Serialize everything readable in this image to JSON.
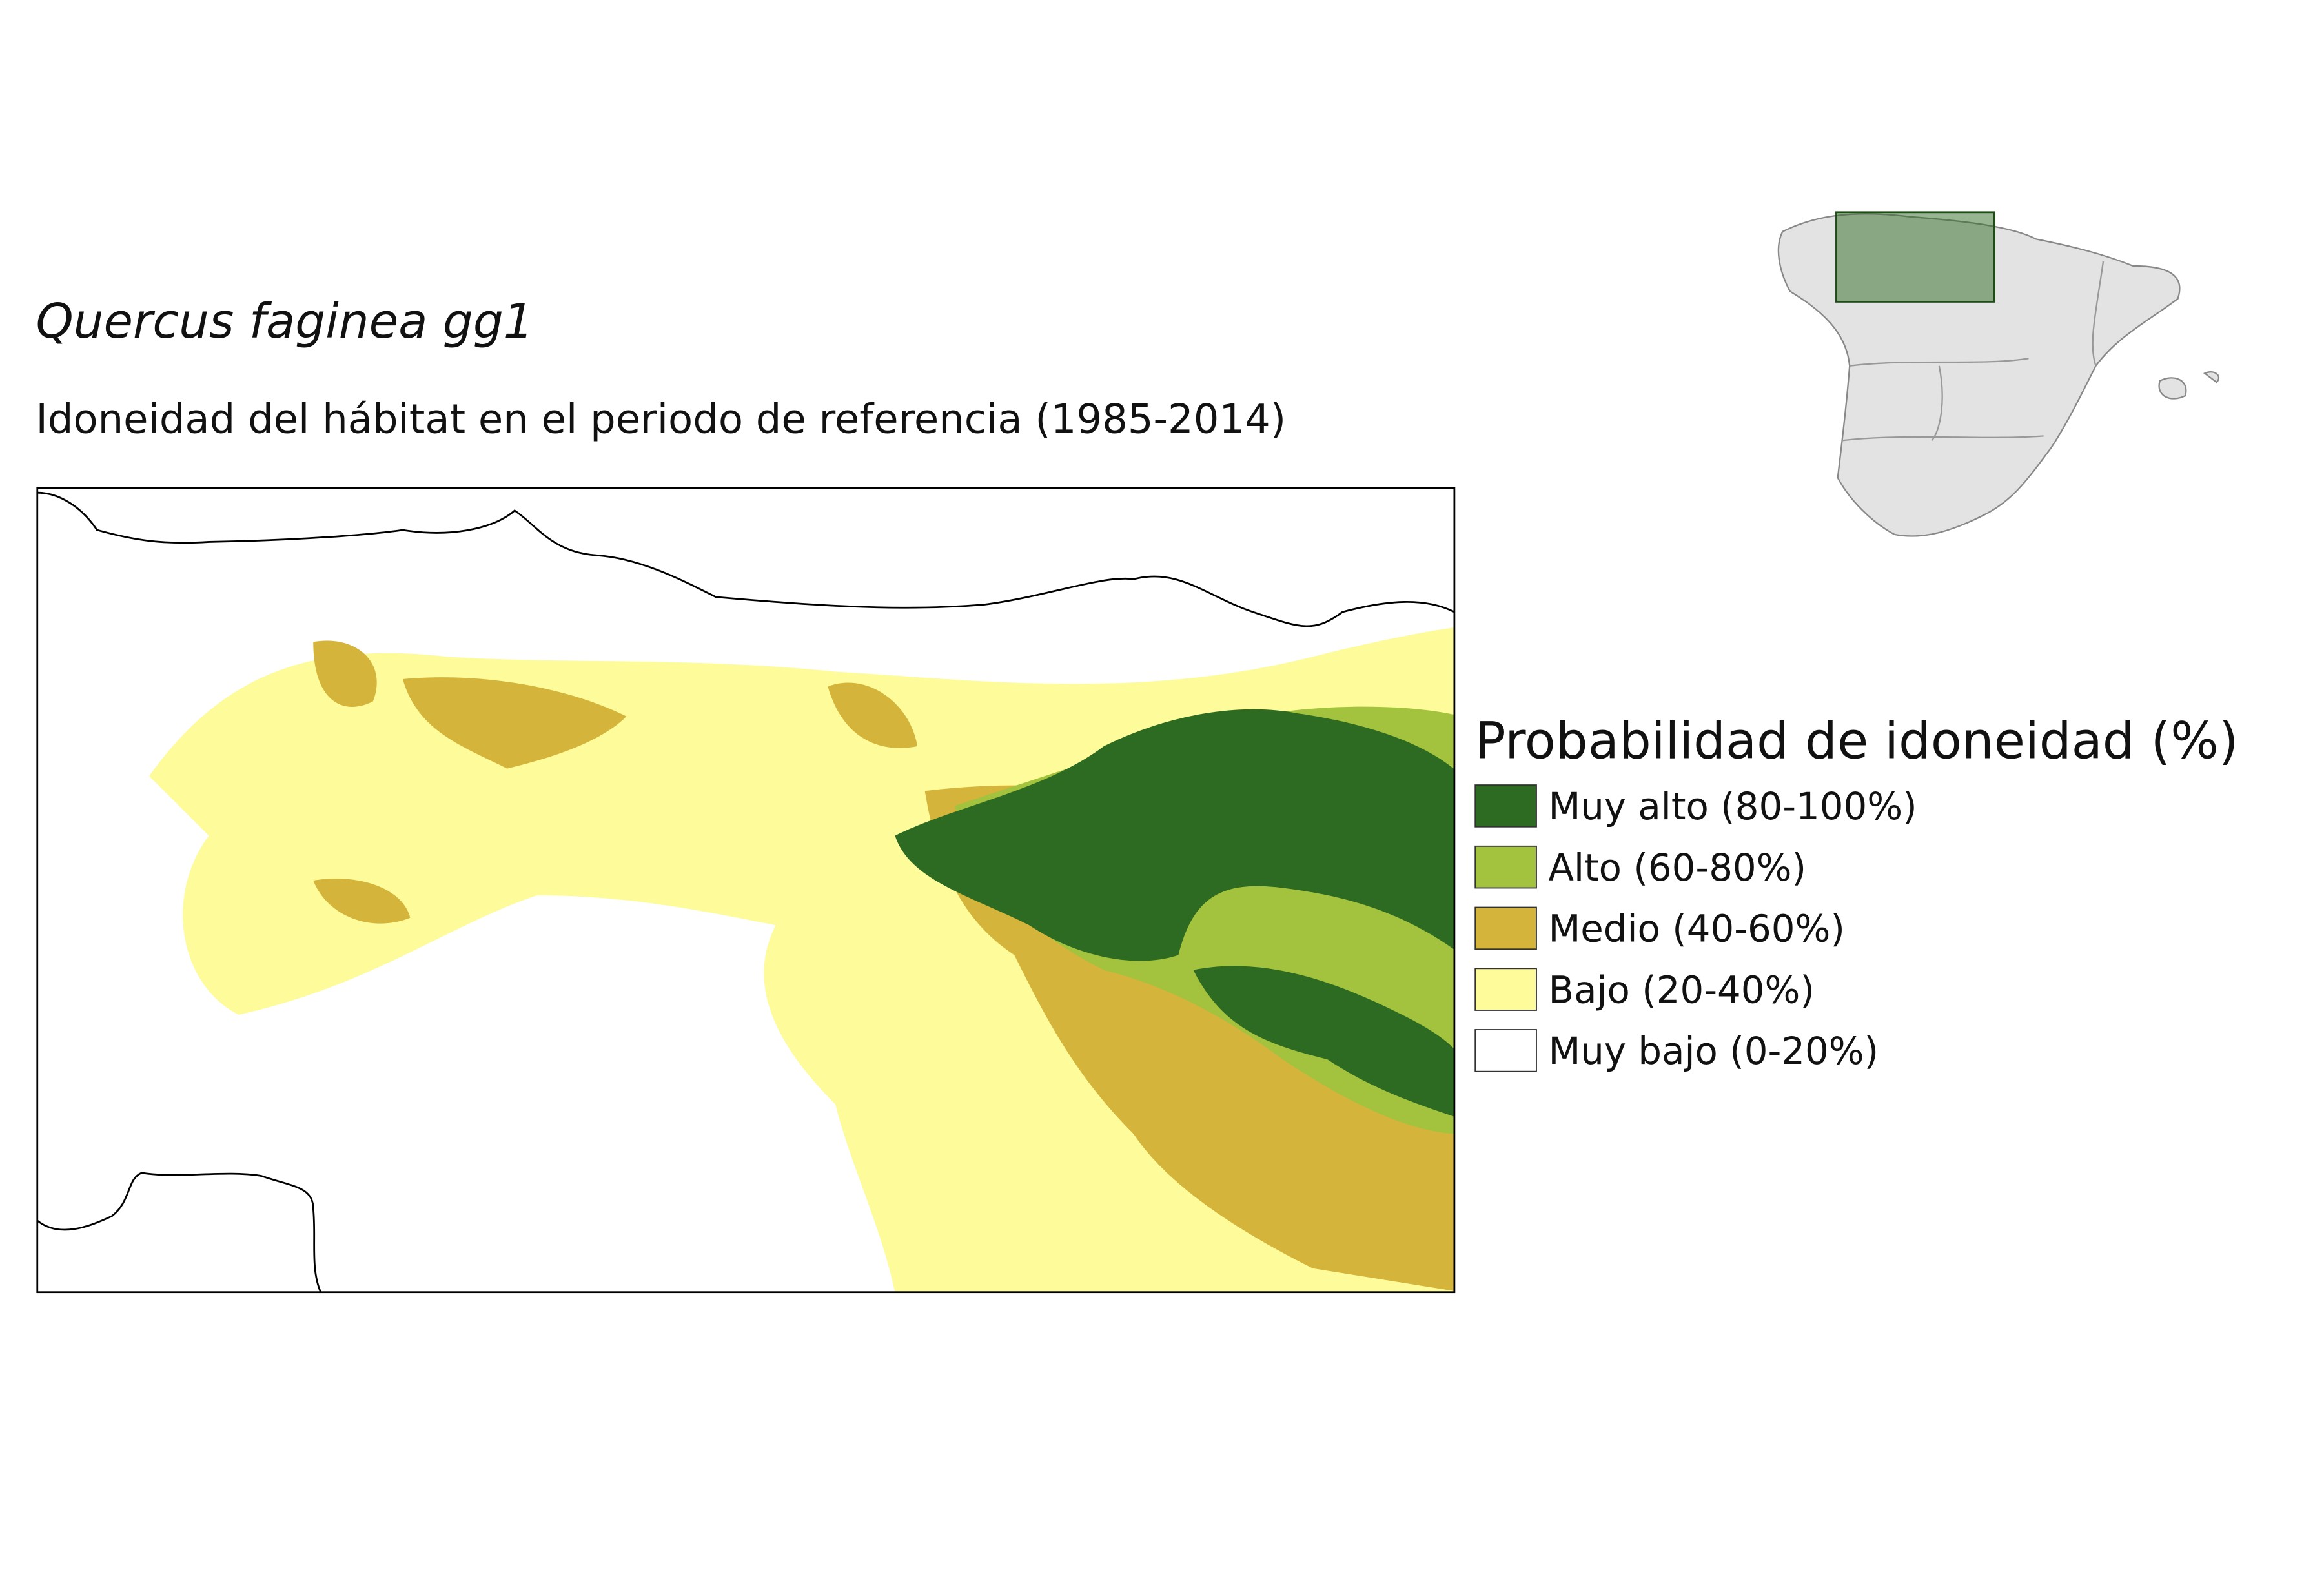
{
  "title": "Quercus faginea gg1",
  "subtitle": "Idoneidad del hábitat en el periodo de referencia (1985-2014)",
  "legend": {
    "title": "Probabilidad de idoneidad (%)",
    "items": [
      {
        "label": "Muy alto (80-100%)",
        "color": "#2e6b22"
      },
      {
        "label": "Alto (60-80%)",
        "color": "#a3c33e"
      },
      {
        "label": "Medio (40-60%)",
        "color": "#d4b43a"
      },
      {
        "label": "Bajo (20-40%)",
        "color": "#fdfb9a"
      },
      {
        "label": "Muy bajo (0-20%)",
        "color": "#ffffff"
      }
    ]
  }
}
